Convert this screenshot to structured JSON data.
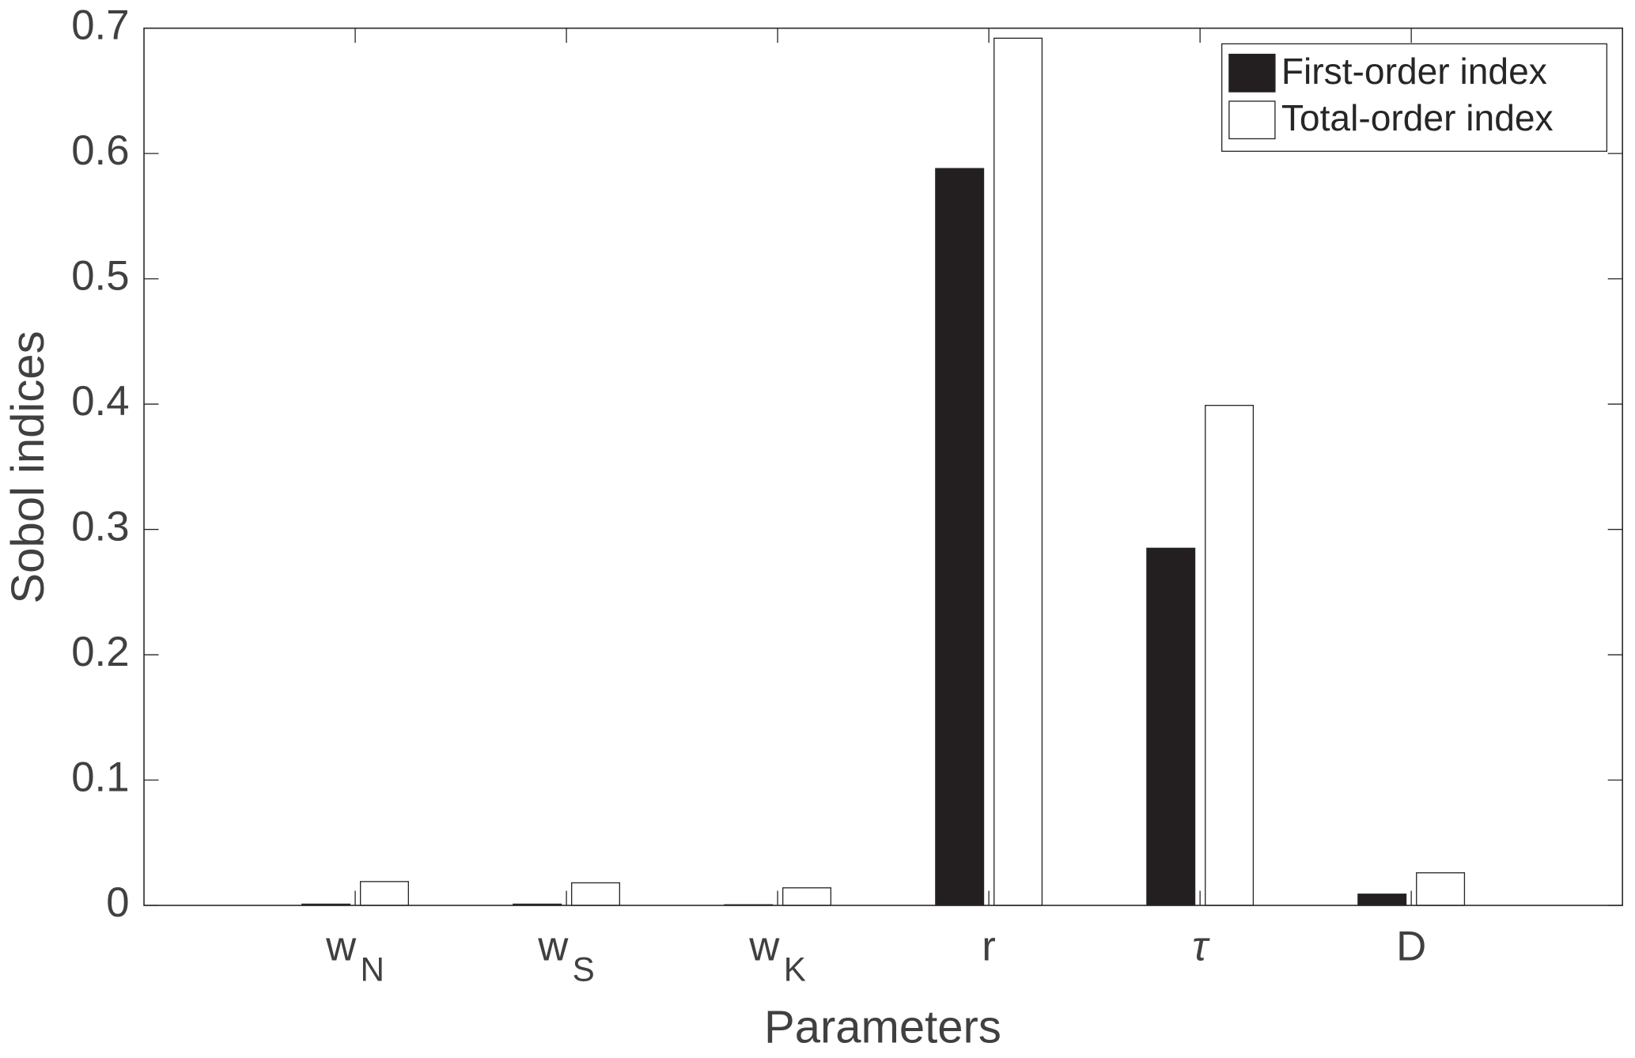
{
  "chart_data": {
    "type": "bar",
    "xlabel": "Parameters",
    "ylabel": "Sobol indices",
    "categories": [
      "wN",
      "wS",
      "wK",
      "r",
      "τ",
      "D"
    ],
    "series": [
      {
        "name": "First-order index",
        "color": "#231f20",
        "values": [
          0.001,
          0.001,
          0.0005,
          0.588,
          0.285,
          0.009
        ]
      },
      {
        "name": "Total-order index",
        "color": "#ffffff",
        "values": [
          0.019,
          0.018,
          0.014,
          0.692,
          0.399,
          0.026
        ]
      }
    ],
    "ylim": [
      0,
      0.7
    ],
    "yticks": [
      0,
      0.1,
      0.2,
      0.3,
      0.4,
      0.5,
      0.6,
      0.7
    ],
    "legend": "upper right",
    "grid": false
  }
}
